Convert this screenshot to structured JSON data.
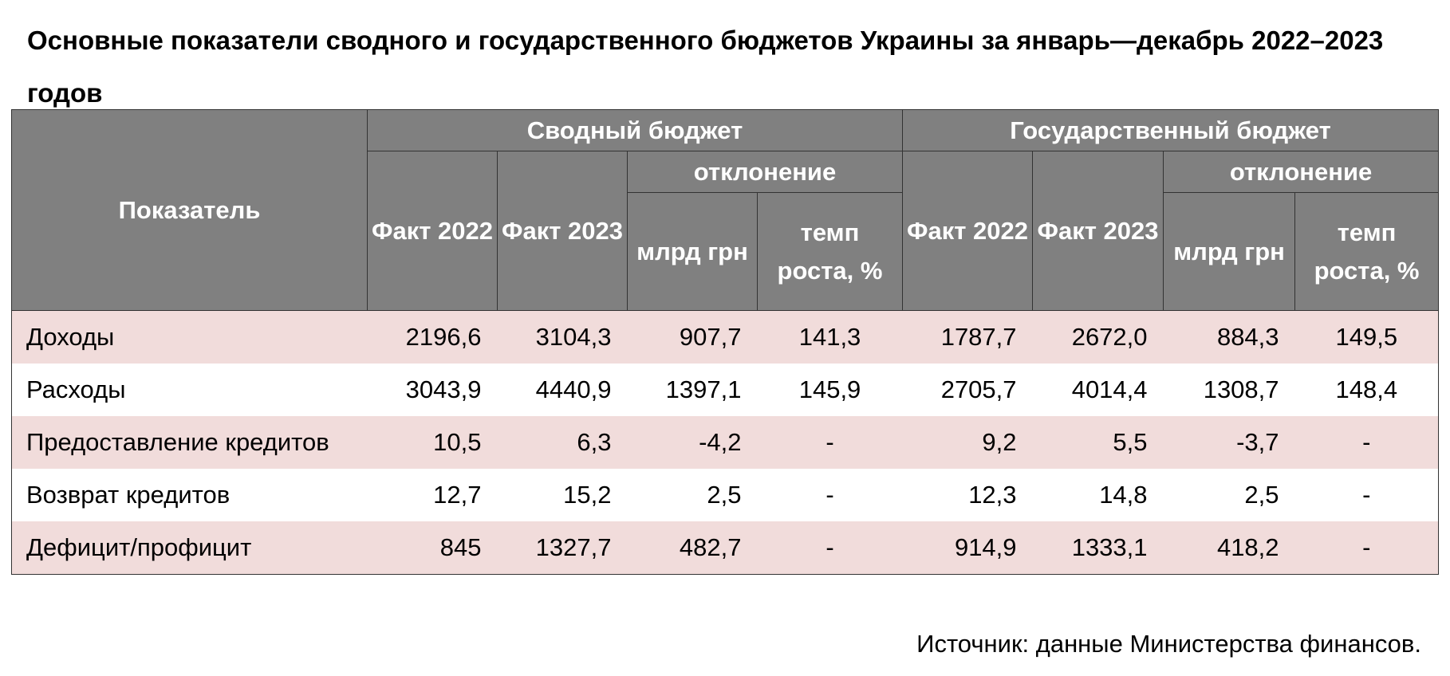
{
  "title": "Основные показатели сводного и государственного бюджетов Украины за январь—декабрь 2022–2023 годов",
  "table": {
    "header": {
      "indicator": "Показатель",
      "groups": [
        {
          "name": "Сводный бюджет",
          "columns": [
            "Факт 2022",
            "Факт 2023"
          ],
          "deviation": {
            "name": "отклонение",
            "columns": [
              "млрд грн",
              "темп роста, %"
            ]
          }
        },
        {
          "name": "Государственный бюджет",
          "columns": [
            "Факт 2022",
            "Факт 2023"
          ],
          "deviation": {
            "name": "отклонение",
            "columns": [
              "млрд грн",
              "темп роста, %"
            ]
          }
        }
      ]
    },
    "rows": [
      [
        "Доходы",
        "2196,6",
        "3104,3",
        "907,7",
        "141,3",
        "1787,7",
        "2672,0",
        "884,3",
        "149,5"
      ],
      [
        "Расходы",
        "3043,9",
        "4440,9",
        "1397,1",
        "145,9",
        "2705,7",
        "4014,4",
        "1308,7",
        "148,4"
      ],
      [
        "Предоставление кредитов",
        "10,5",
        "6,3",
        "-4,2",
        "-",
        "9,2",
        "5,5",
        "-3,7",
        "-"
      ],
      [
        "Возврат кредитов",
        "12,7",
        "15,2",
        "2,5",
        "-",
        "12,3",
        "14,8",
        "2,5",
        "-"
      ],
      [
        "Дефицит/профицит",
        "845",
        "1327,7",
        "482,7",
        "-",
        "914,9",
        "1333,1",
        "418,2",
        "-"
      ]
    ]
  },
  "source": "Источник: данные Министерства финансов."
}
